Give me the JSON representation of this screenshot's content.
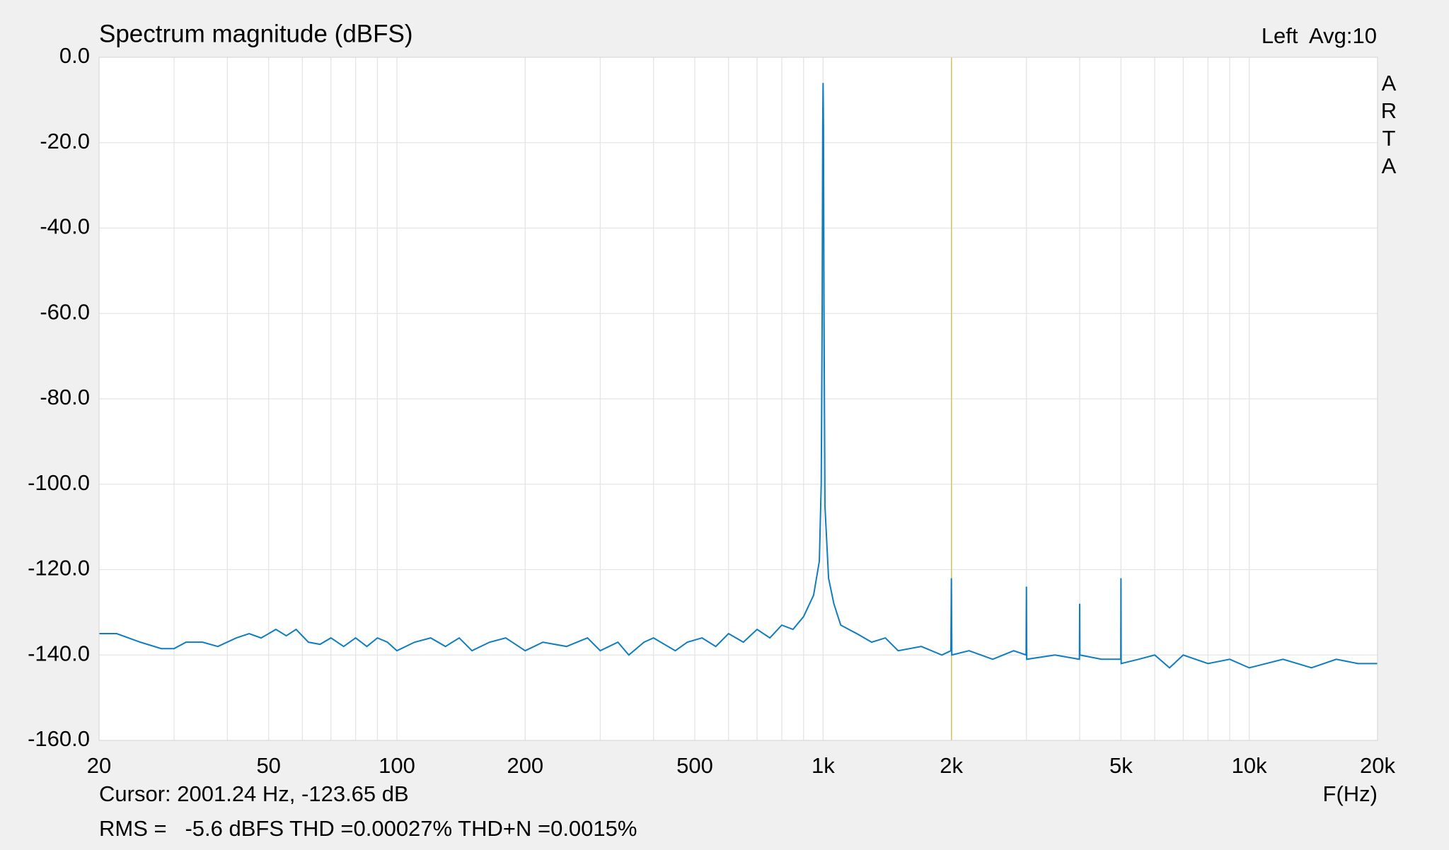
{
  "chart_data": {
    "type": "line",
    "title": "Spectrum magnitude (dBFS)",
    "channel_label": "Left  Avg:10",
    "watermark": "ARTA",
    "x_label": "F(Hz)",
    "cursor": {
      "label": "Cursor: 2001.24 Hz, -123.65 dB",
      "x": 2001.24,
      "color": "#d8c060"
    },
    "footer": "RMS =   -5.6 dBFS THD =0.00027% THD+N =0.0015%",
    "footer_color": "#c00000",
    "xlog": true,
    "grid": true,
    "xlim": [
      20,
      20000
    ],
    "ylim": [
      -160,
      0
    ],
    "xticks": [
      20,
      50,
      100,
      200,
      500,
      {
        "value": 1000,
        "label": "1k"
      },
      {
        "value": 2000,
        "label": "2k"
      },
      {
        "value": 5000,
        "label": "5k"
      },
      {
        "value": 10000,
        "label": "10k"
      },
      {
        "value": 20000,
        "label": "20k"
      }
    ],
    "xminor": [
      30,
      40,
      60,
      70,
      80,
      90,
      300,
      400,
      600,
      700,
      800,
      900,
      3000,
      4000,
      6000,
      7000,
      8000,
      9000
    ],
    "yticks": [
      {
        "value": 0,
        "label": "0.0"
      },
      {
        "value": -20,
        "label": "-20.0"
      },
      {
        "value": -40,
        "label": "-40.0"
      },
      {
        "value": -60,
        "label": "-60.0"
      },
      {
        "value": -80,
        "label": "-80.0"
      },
      {
        "value": -100,
        "label": "-100.0"
      },
      {
        "value": -120,
        "label": "-120.0"
      },
      {
        "value": -140,
        "label": "-140.0"
      },
      {
        "value": -160,
        "label": "-160.0"
      }
    ],
    "series": [
      {
        "color": "#0f7dbf",
        "x": [
          20,
          22,
          25,
          28,
          30,
          32,
          35,
          38,
          42,
          45,
          48,
          50,
          52,
          55,
          58,
          62,
          66,
          70,
          75,
          80,
          85,
          90,
          95,
          100,
          110,
          120,
          130,
          140,
          150,
          165,
          180,
          200,
          220,
          250,
          280,
          300,
          330,
          350,
          380,
          400,
          450,
          480,
          520,
          560,
          600,
          650,
          700,
          750,
          800,
          850,
          900,
          950,
          980,
          990,
          995,
          998,
          1000,
          1002,
          1005,
          1010,
          1030,
          1060,
          1100,
          1200,
          1300,
          1400,
          1500,
          1700,
          1900,
          1995,
          2000,
          2005,
          2200,
          2500,
          2800,
          2995,
          3000,
          3005,
          3500,
          3995,
          4000,
          4005,
          4500,
          4995,
          5000,
          5005,
          5500,
          6000,
          6500,
          7000,
          8000,
          9000,
          10000,
          12000,
          14000,
          16000,
          18000,
          20000
        ],
        "values": [
          -135,
          -135,
          -137,
          -138.5,
          -138.5,
          -137,
          -137,
          -138,
          -136,
          -135,
          -136,
          -135,
          -134,
          -135.5,
          -134,
          -137,
          -137.5,
          -136,
          -138,
          -136,
          -138,
          -136,
          -137,
          -139,
          -137,
          -136,
          -138,
          -136,
          -139,
          -137,
          -136,
          -139,
          -137,
          -138,
          -136,
          -139,
          -137,
          -140,
          -137,
          -136,
          -139,
          -137,
          -136,
          -138,
          -135,
          -137,
          -134,
          -136,
          -133,
          -134,
          -131,
          -126,
          -118,
          -100,
          -60,
          -16,
          -6,
          -16,
          -60,
          -105,
          -122,
          -128,
          -133,
          -135,
          -137,
          -136,
          -139,
          -138,
          -140,
          -139,
          -122,
          -140,
          -139,
          -141,
          -139,
          -140,
          -124,
          -141,
          -140,
          -141,
          -128,
          -140,
          -141,
          -141,
          -122,
          -142,
          -141,
          -140,
          -143,
          -140,
          -142,
          -141,
          -143,
          -141,
          -143,
          -141,
          -142,
          -142
        ]
      }
    ]
  }
}
